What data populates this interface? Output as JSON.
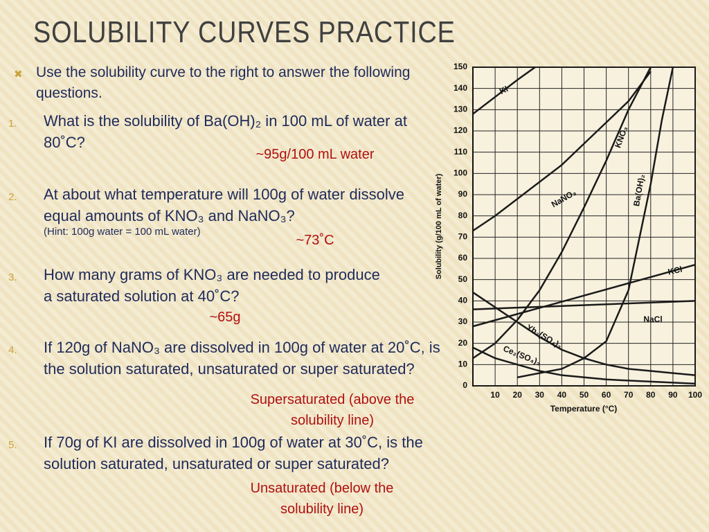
{
  "title": "SOLUBILITY CURVES PRACTICE",
  "intro": "Use the solubility curve to the right to answer the following questions.",
  "questions": [
    {
      "number": "1.",
      "text": "What is the solubility of Ba(OH)₂ in 100 mL of water at 80˚C?",
      "answer": "~95g/100 mL water"
    },
    {
      "number": "2.",
      "text": "At about what temperature will 100g of water dissolve equal amounts of KNO₃ and NaNO₃?",
      "hint": "(Hint: 100g water = 100 mL water)",
      "answer": "~73˚C"
    },
    {
      "number": "3.",
      "text": "How many grams of KNO₃ are needed to produce a saturated solution at 40˚C?",
      "answer": "~65g"
    },
    {
      "number": "4.",
      "text": "If 120g of NaNO₃ are dissolved in 100g of water at 20˚C, is the solution saturated, unsaturated or super saturated?",
      "answer": "Supersaturated (above the solubility line)"
    },
    {
      "number": "5.",
      "text": "If 70g of KI are dissolved in 100g of water at 30˚C, is the solution saturated, unsaturated or super saturated?",
      "answer": "Unsaturated (below the solubility line)"
    }
  ],
  "chart_data": {
    "type": "line",
    "x_label": "Temperature (°C)",
    "y_label": "Solubility (g/100 mL of water)",
    "xlim": [
      0,
      100
    ],
    "ylim": [
      0,
      150
    ],
    "xticks": [
      10,
      20,
      30,
      40,
      50,
      60,
      70,
      80,
      90,
      100
    ],
    "yticks": [
      0,
      10,
      20,
      30,
      40,
      50,
      60,
      70,
      80,
      90,
      100,
      110,
      120,
      130,
      140,
      150
    ],
    "grid": true,
    "series": [
      {
        "name": "KI",
        "color": "#1a1a1a",
        "x": [
          0,
          10,
          20,
          28
        ],
        "values": [
          128,
          136,
          144,
          150
        ]
      },
      {
        "name": "KNO₃",
        "color": "#1a1a1a",
        "x": [
          0,
          10,
          20,
          30,
          40,
          50,
          60,
          70,
          80
        ],
        "values": [
          13,
          20,
          31,
          45,
          63,
          84,
          106,
          130,
          150
        ]
      },
      {
        "name": "NaNO₃",
        "color": "#1a1a1a",
        "x": [
          0,
          10,
          20,
          30,
          40,
          50,
          60,
          70,
          80
        ],
        "values": [
          73,
          80,
          88,
          96,
          104,
          114,
          124,
          134,
          148
        ]
      },
      {
        "name": "Ba(OH)₂",
        "color": "#1a1a1a",
        "x": [
          20,
          30,
          40,
          50,
          60,
          70,
          80,
          85,
          90
        ],
        "values": [
          4,
          6,
          8,
          13,
          21,
          45,
          95,
          125,
          150
        ]
      },
      {
        "name": "KCl",
        "color": "#1a1a1a",
        "x": [
          0,
          100
        ],
        "values": [
          28,
          57
        ]
      },
      {
        "name": "NaCl",
        "color": "#1a1a1a",
        "x": [
          0,
          100
        ],
        "values": [
          36,
          40
        ]
      },
      {
        "name": "Yb₂(SO₄)₃",
        "color": "#1a1a1a",
        "x": [
          0,
          10,
          20,
          30,
          40,
          50,
          60,
          70,
          80,
          90,
          100
        ],
        "values": [
          44,
          37,
          30,
          23,
          17,
          13,
          10,
          8,
          7,
          6,
          5
        ]
      },
      {
        "name": "Ce₂(SO₄)₃",
        "color": "#1a1a1a",
        "x": [
          0,
          10,
          20,
          30,
          40,
          60,
          100
        ],
        "values": [
          18,
          13,
          10,
          7,
          5,
          3,
          1
        ]
      }
    ]
  }
}
